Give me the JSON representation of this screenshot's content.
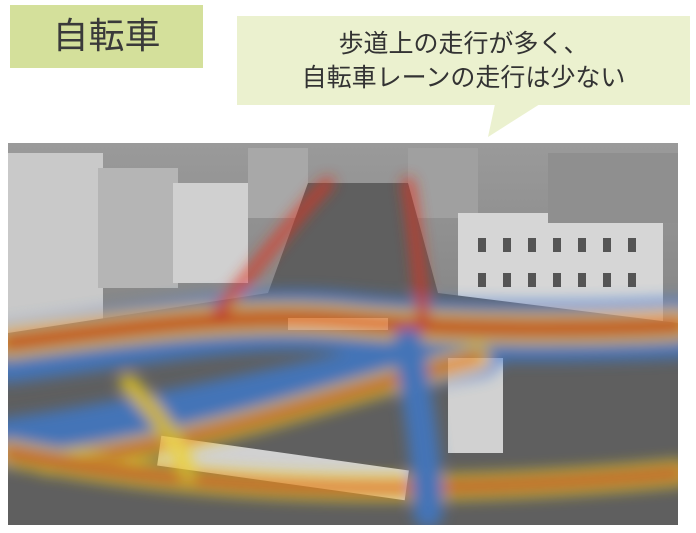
{
  "label": "自転車",
  "callout": {
    "lines": [
      "歩道上の走行が多く、",
      "自転車レーンの走行は少ない"
    ]
  }
}
